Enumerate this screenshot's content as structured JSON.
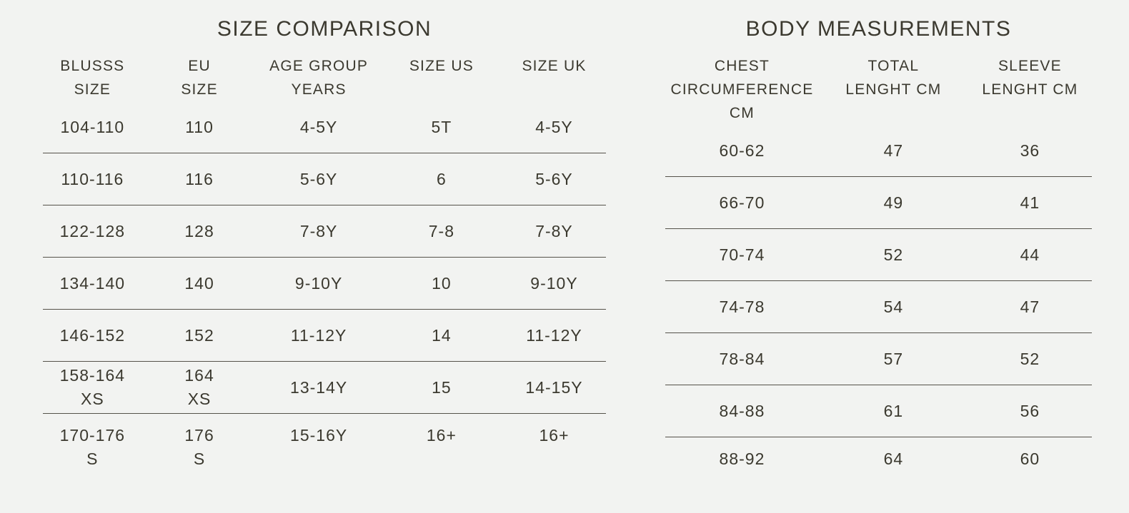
{
  "colors": {
    "background": "#f2f3f1",
    "text": "#3b392f",
    "divider": "#55524a"
  },
  "chart_data": [
    {
      "type": "table",
      "title": "SIZE COMPARISON",
      "columns": [
        "BLUSSS SIZE",
        "EU SIZE",
        "AGE GROUP YEARS",
        "SIZE US",
        "SIZE UK"
      ],
      "header_lines": [
        [
          "BLUSSS",
          "SIZE"
        ],
        [
          "EU",
          "SIZE"
        ],
        [
          "AGE GROUP",
          "YEARS"
        ],
        [
          "SIZE US"
        ],
        [
          "SIZE UK"
        ]
      ],
      "rows": [
        [
          [
            "104-110"
          ],
          [
            "110"
          ],
          [
            "4-5Y"
          ],
          [
            "5T"
          ],
          [
            "4-5Y"
          ]
        ],
        [
          [
            "110-116"
          ],
          [
            "116"
          ],
          [
            "5-6Y"
          ],
          [
            "6"
          ],
          [
            "5-6Y"
          ]
        ],
        [
          [
            "122-128"
          ],
          [
            "128"
          ],
          [
            "7-8Y"
          ],
          [
            "7-8"
          ],
          [
            "7-8Y"
          ]
        ],
        [
          [
            "134-140"
          ],
          [
            "140"
          ],
          [
            "9-10Y"
          ],
          [
            "10"
          ],
          [
            "9-10Y"
          ]
        ],
        [
          [
            "146-152"
          ],
          [
            "152"
          ],
          [
            "11-12Y"
          ],
          [
            "14"
          ],
          [
            "11-12Y"
          ]
        ],
        [
          [
            "158-164",
            "XS"
          ],
          [
            "164",
            "XS"
          ],
          [
            "13-14Y"
          ],
          [
            "15"
          ],
          [
            "14-15Y"
          ]
        ],
        [
          [
            "170-176",
            "S"
          ],
          [
            "176",
            "S"
          ],
          [
            "15-16Y"
          ],
          [
            "16+"
          ],
          [
            "16+"
          ]
        ]
      ],
      "layout": {
        "grid": "off",
        "row_dividers": "on"
      }
    },
    {
      "type": "table",
      "title": "BODY MEASUREMENTS",
      "columns": [
        "CHEST CIRCUMFERENCE CM",
        "TOTAL LENGHT CM",
        "SLEEVE LENGHT CM"
      ],
      "header_lines": [
        [
          "CHEST",
          "CIRCUMFERENCE CM"
        ],
        [
          "TOTAL",
          "LENGHT CM"
        ],
        [
          "SLEEVE",
          "LENGHT CM"
        ]
      ],
      "rows": [
        [
          [
            "60-62"
          ],
          [
            "47"
          ],
          [
            "36"
          ]
        ],
        [
          [
            "66-70"
          ],
          [
            "49"
          ],
          [
            "41"
          ]
        ],
        [
          [
            "70-74"
          ],
          [
            "52"
          ],
          [
            "44"
          ]
        ],
        [
          [
            "74-78"
          ],
          [
            "54"
          ],
          [
            "47"
          ]
        ],
        [
          [
            "78-84"
          ],
          [
            "57"
          ],
          [
            "52"
          ]
        ],
        [
          [
            "84-88"
          ],
          [
            "61"
          ],
          [
            "56"
          ]
        ],
        [
          [
            "88-92"
          ],
          [
            "64"
          ],
          [
            "60"
          ]
        ]
      ],
      "layout": {
        "grid": "off",
        "row_dividers": "on"
      }
    }
  ]
}
